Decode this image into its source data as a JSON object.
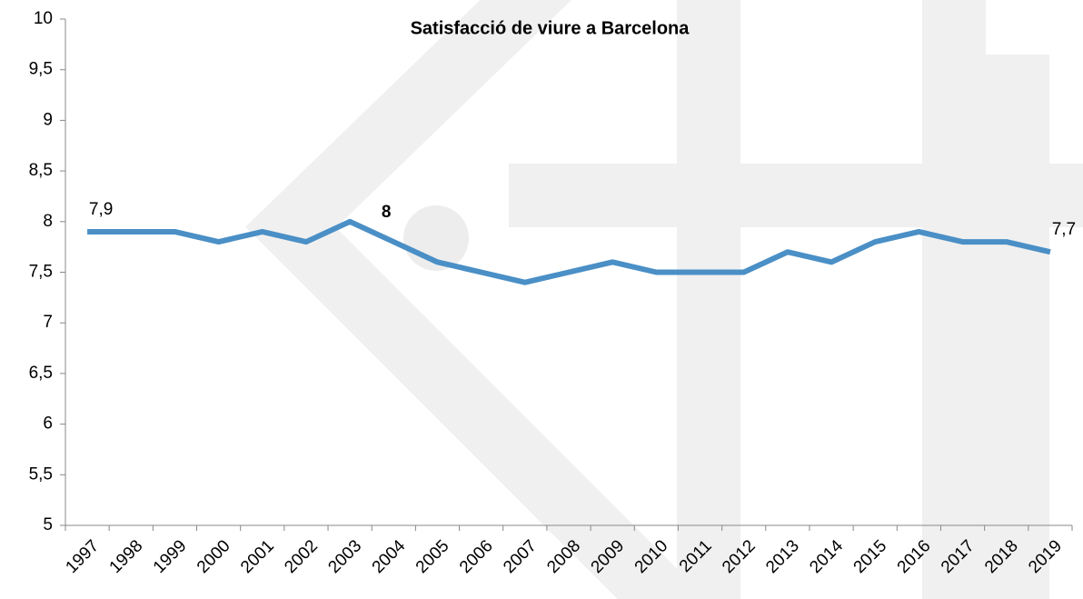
{
  "chart_data": {
    "type": "line",
    "title": "Satisfacció de viure a Barcelona",
    "categories": [
      "1997",
      "1998",
      "1999",
      "2000",
      "2001",
      "2002",
      "2003",
      "2004",
      "2005",
      "2006",
      "2007",
      "2008",
      "2009",
      "2010",
      "2011",
      "2012",
      "2013",
      "2014",
      "2015",
      "2016",
      "2017",
      "2018",
      "2019"
    ],
    "series": [
      {
        "name": "Satisfacció",
        "color": "#4a8fc6",
        "values": [
          7.9,
          7.9,
          7.9,
          7.8,
          7.9,
          7.8,
          8.0,
          7.8,
          7.6,
          7.5,
          7.4,
          7.5,
          7.6,
          7.5,
          7.5,
          7.5,
          7.7,
          7.6,
          7.8,
          7.9,
          7.8,
          7.8,
          7.7
        ],
        "value_labels": [
          "7,9",
          null,
          null,
          null,
          null,
          null,
          "8",
          null,
          null,
          null,
          null,
          null,
          null,
          null,
          null,
          null,
          null,
          null,
          null,
          null,
          null,
          null,
          "7,7"
        ]
      }
    ],
    "ylim": [
      5,
      10
    ],
    "yticks": [
      5,
      {
        "value": 5.5,
        "label": "5,5"
      },
      6,
      {
        "value": 6.5,
        "label": "6,5"
      },
      7,
      {
        "value": 7.5,
        "label": "7,5"
      },
      8,
      {
        "value": 8.5,
        "label": "8,5"
      },
      9,
      {
        "value": 9.5,
        "label": "9,5"
      },
      10
    ]
  }
}
